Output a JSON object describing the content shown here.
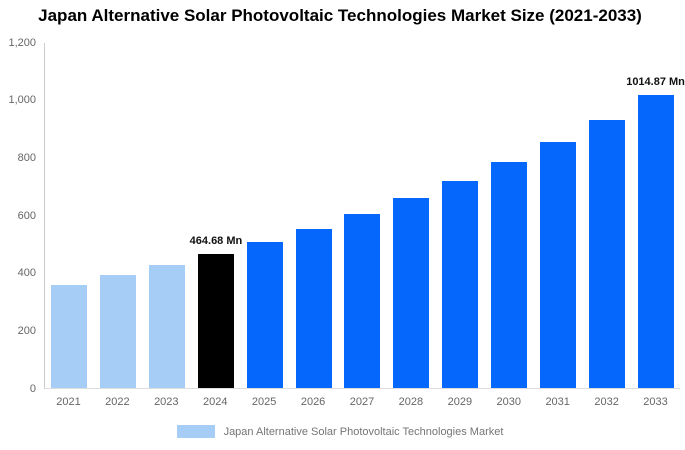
{
  "title": "Japan Alternative Solar Photovoltaic Technologies Market Size (2021-2033)",
  "legend": {
    "label": "Japan Alternative Solar Photovoltaic Technologies Market",
    "swatch_color": "#A6CDF5"
  },
  "colors": {
    "past_bar": "#A6CDF5",
    "highlight_bar": "#000000",
    "forecast_bar": "#0667FC",
    "axis_line": "#CCCCCC",
    "baseline": "#DDDDDD",
    "tick_label": "#666666",
    "legend_text": "#757575",
    "title_text": "#000000",
    "data_label_text": "#111111"
  },
  "chart_data": {
    "type": "bar",
    "title": "Japan Alternative Solar Photovoltaic Technologies Market Size (2021-2033)",
    "categories": [
      "2021",
      "2022",
      "2023",
      "2024",
      "2025",
      "2026",
      "2027",
      "2028",
      "2029",
      "2030",
      "2031",
      "2032",
      "2033"
    ],
    "values": [
      358.18,
      390.66,
      426.08,
      464.68,
      506.81,
      552.76,
      602.87,
      657.53,
      717.14,
      782.16,
      853.07,
      930.41,
      1014.87
    ],
    "unit": "Mn",
    "bar_roles": [
      "past",
      "past",
      "past",
      "highlight",
      "forecast",
      "forecast",
      "forecast",
      "forecast",
      "forecast",
      "forecast",
      "forecast",
      "forecast",
      "forecast"
    ],
    "data_labels": [
      {
        "index": 3,
        "text": "464.68 Mn"
      },
      {
        "index": 12,
        "text": "1014.87 Mn"
      }
    ],
    "xlabel": "",
    "ylabel": "",
    "ylim": [
      0,
      1200
    ],
    "yticks": [
      "1,200",
      "1,000",
      "800",
      "600",
      "400",
      "200",
      "0"
    ],
    "grid": false,
    "legend_position": "bottom"
  }
}
